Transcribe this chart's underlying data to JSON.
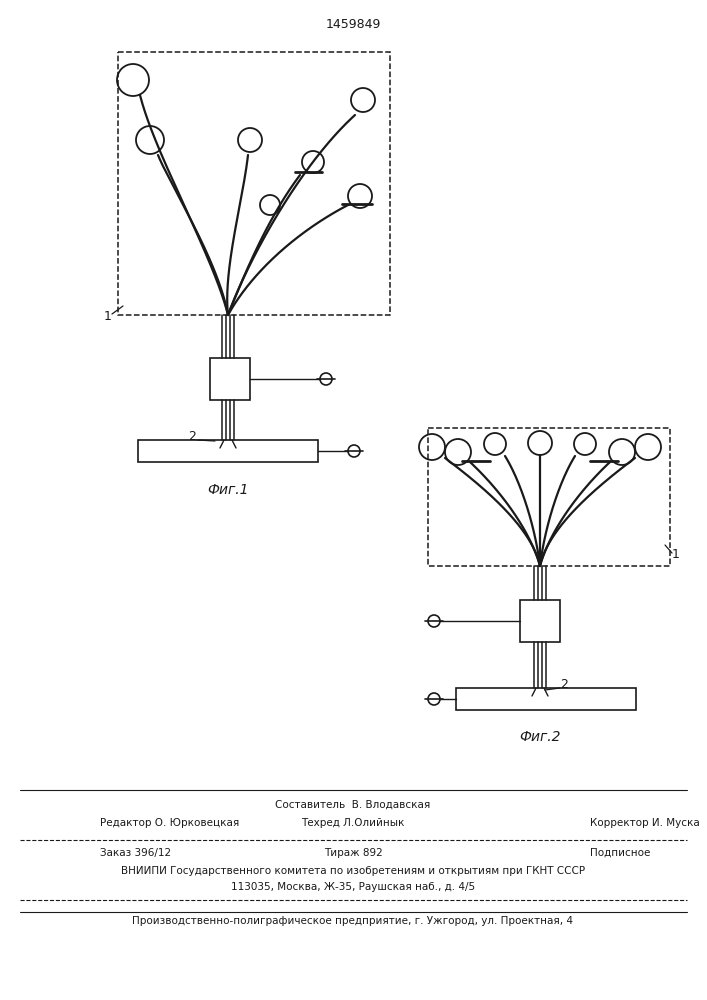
{
  "title": "1459849",
  "background_color": "#ffffff",
  "line_color": "#1a1a1a",
  "fig1_caption": "Фиг.1",
  "fig2_caption": "Фиг.2",
  "footer_line1": "Составитель  В. Влодавская",
  "footer_line2a": "Редактор О. Юрковецкая",
  "footer_line2b": "Техред Л.Олийнык",
  "footer_line2c": "Корректор И. Муска",
  "footer_line3a": "Заказ 396/12",
  "footer_line3b": "Тираж 892",
  "footer_line3c": "Подписное",
  "footer_line4": "ВНИИПИ Государственного комитета по изобретениям и открытиям при ГКНТ СССР",
  "footer_line5": "113035, Москва, Ж-35, Раушская наб., д. 4/5",
  "footer_line6": "Производственно-полиграфическое предприятие, г. Ужгород, ул. Проектная, 4"
}
